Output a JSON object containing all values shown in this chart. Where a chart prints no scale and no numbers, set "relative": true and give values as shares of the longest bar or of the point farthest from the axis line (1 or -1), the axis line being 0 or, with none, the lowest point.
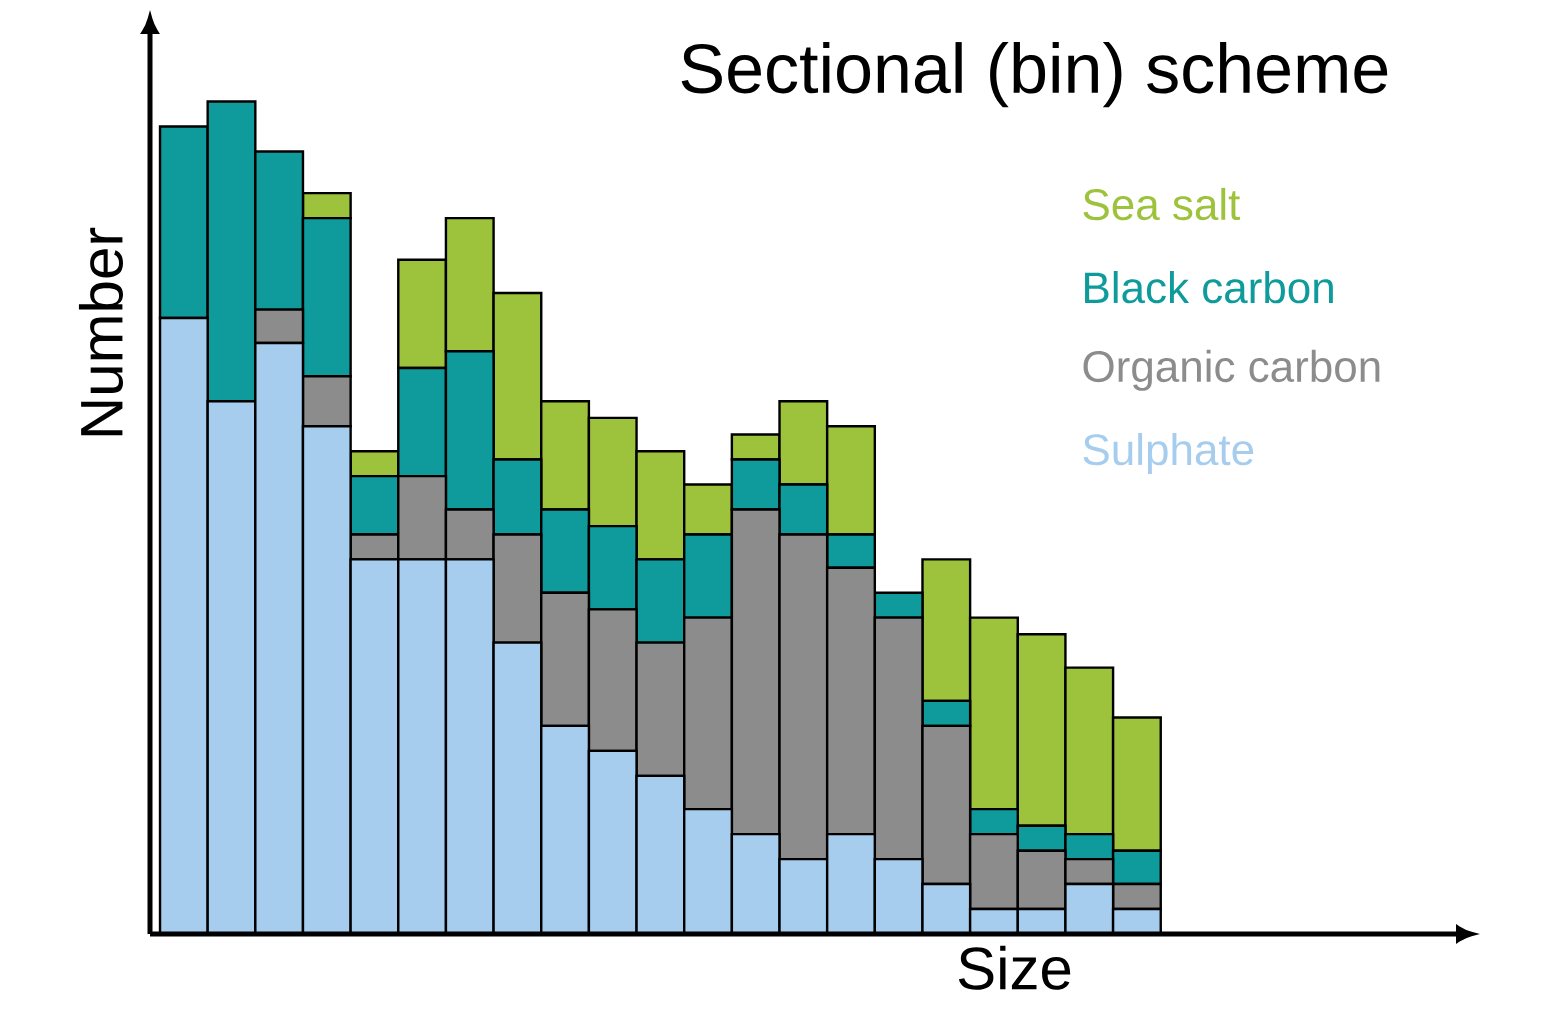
{
  "chart_data": {
    "type": "bar",
    "title": "Sectional (bin) scheme",
    "xlabel": "Size",
    "ylabel": "Number",
    "relative": true,
    "stacked": true,
    "legend": "top right",
    "categories": [
      null,
      null,
      null,
      null,
      null,
      null,
      null,
      null,
      null,
      null,
      null,
      null,
      null,
      null,
      null,
      null,
      null,
      null,
      null,
      null,
      null
    ],
    "series": [
      {
        "name": "Sulphate",
        "color": "#a6cdee",
        "values": [
          0.74,
          0.64,
          0.71,
          0.61,
          0.45,
          0.45,
          0.45,
          0.35,
          0.25,
          0.22,
          0.19,
          0.15,
          0.12,
          0.09,
          0.12,
          0.09,
          0.06,
          0.03,
          0.03,
          0.06,
          0.03
        ]
      },
      {
        "name": "Organic carbon",
        "color": "#8c8c8c",
        "values": [
          0,
          0,
          0.04,
          0.06,
          0.03,
          0.1,
          0.06,
          0.13,
          0.16,
          0.17,
          0.16,
          0.23,
          0.39,
          0.39,
          0.32,
          0.29,
          0.19,
          0.09,
          0.07,
          0.03,
          0.03
        ]
      },
      {
        "name": "Black carbon",
        "color": "#0f9b9b",
        "values": [
          0.23,
          0.36,
          0.19,
          0.19,
          0.07,
          0.13,
          0.19,
          0.09,
          0.1,
          0.1,
          0.1,
          0.1,
          0.06,
          0.06,
          0.04,
          0.03,
          0.03,
          0.03,
          0.03,
          0.03,
          0.04
        ]
      },
      {
        "name": "Sea salt",
        "color": "#9dc23b",
        "values": [
          0,
          0,
          0,
          0.03,
          0.03,
          0.13,
          0.16,
          0.2,
          0.13,
          0.13,
          0.13,
          0.06,
          0.03,
          0.1,
          0.13,
          0,
          0.17,
          0.23,
          0.23,
          0.2,
          0.16
        ]
      }
    ]
  }
}
